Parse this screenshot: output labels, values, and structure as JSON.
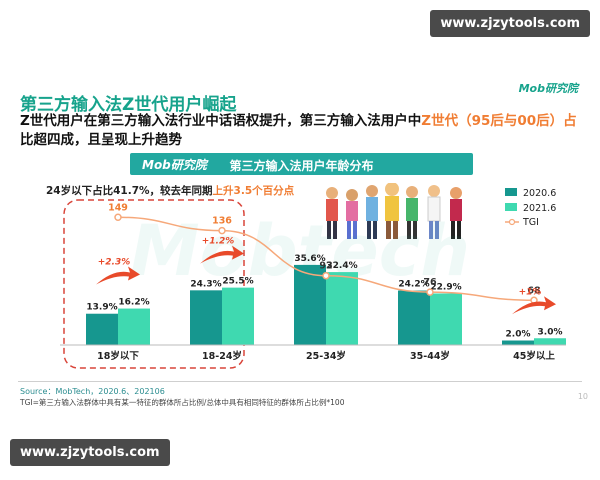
{
  "watermark": "www.zjzytools.com",
  "page_title": "第三方输入法Z世代用户崛起",
  "brand": "Mob研究院",
  "headline": {
    "part1": "Z世代用户在第三方输入法行业中话语权提升，第三方输入法用户中",
    "highlight": "Z世代（95后与00后）占",
    "part2": "比超四成，且呈现上升趋势"
  },
  "banner": {
    "logo": "Mob研究院",
    "title": "第三方输入法用户年龄分布"
  },
  "insight": {
    "text": "24岁以下占比41.7%，较去年同期",
    "highlight": "上升3.5个百分点"
  },
  "watermark_bg": "Mobtech",
  "colors": {
    "s2020": "#16978f",
    "s2021": "#3fd9b0",
    "tgi": "#f6a87a",
    "accent": "#17a38c",
    "arrow": "#e84a2a"
  },
  "chart_data": {
    "type": "bar",
    "categories": [
      "18岁以下",
      "18-24岁",
      "25-34岁",
      "35-44岁",
      "45岁以上"
    ],
    "series": [
      {
        "name": "2020.6",
        "values": [
          13.9,
          24.3,
          35.6,
          24.2,
          2.0
        ],
        "labels": [
          "13.9%",
          "24.3%",
          "35.6%",
          "24.2%",
          "2.0%"
        ]
      },
      {
        "name": "2021.6",
        "values": [
          16.2,
          25.5,
          32.4,
          22.9,
          3.0
        ],
        "labels": [
          "16.2%",
          "25.5%",
          "32.4%",
          "22.9%",
          "3.0%"
        ]
      }
    ],
    "line": {
      "name": "TGI",
      "values": [
        149,
        136,
        92,
        76,
        68
      ],
      "labels": [
        "149",
        "136",
        "92",
        "76",
        "68"
      ]
    },
    "annotations": [
      "+2.3%",
      "+1.2%",
      "+1%"
    ],
    "legend_position": "right",
    "ylim": [
      0,
      40
    ],
    "tgi_range": [
      40,
      160
    ],
    "grid": false
  },
  "footer": {
    "source": "Source：MobTech，2020.6、202106",
    "note": "TGI=第三方输入法群体中具有某一特征的群体所占比例/总体中具有相同特征的群体所占比例*100",
    "page": "10"
  }
}
